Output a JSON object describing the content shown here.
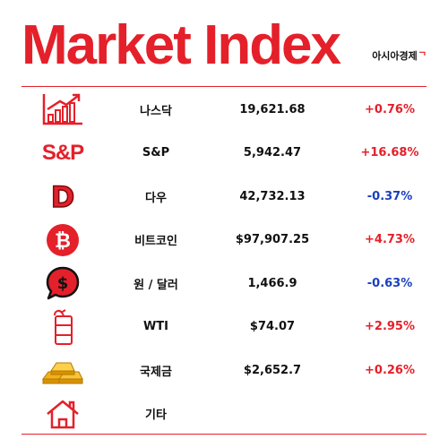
{
  "header": {
    "title": "Market Index",
    "brand": "아시아경제"
  },
  "rows": [
    {
      "icon": "bar-chart-growth-icon",
      "name": "나스닥",
      "value": "19,621.68",
      "change": "+0.76%",
      "direction": "up"
    },
    {
      "icon": "sp-logo-icon",
      "icon_text": "S&P",
      "name": "S&P",
      "value": "5,942.47",
      "change": "+16.68%",
      "direction": "up"
    },
    {
      "icon": "dow-letter-d-icon",
      "icon_text": "D",
      "name": "다우",
      "value": "42,732.13",
      "change": "-0.37%",
      "direction": "down"
    },
    {
      "icon": "bitcoin-icon",
      "name": "비트코인",
      "value": "$97,907.25",
      "change": "+4.73%",
      "direction": "up"
    },
    {
      "icon": "dollar-speech-bubble-icon",
      "name": "원 / 달러",
      "value": "1,466.9",
      "change": "-0.63%",
      "direction": "down"
    },
    {
      "icon": "oil-barrel-icon",
      "name": "WTI",
      "value": "$74.07",
      "change": "+2.95%",
      "direction": "up"
    },
    {
      "icon": "gold-bars-icon",
      "name": "국제금",
      "value": "$2,652.7",
      "change": "+0.26%",
      "direction": "up"
    },
    {
      "icon": "house-icon",
      "name": "기타",
      "value": "",
      "change": "",
      "direction": ""
    }
  ],
  "colors": {
    "accent": "#e4202a",
    "down": "#1a3fbf",
    "gold": "#f2b01e"
  }
}
